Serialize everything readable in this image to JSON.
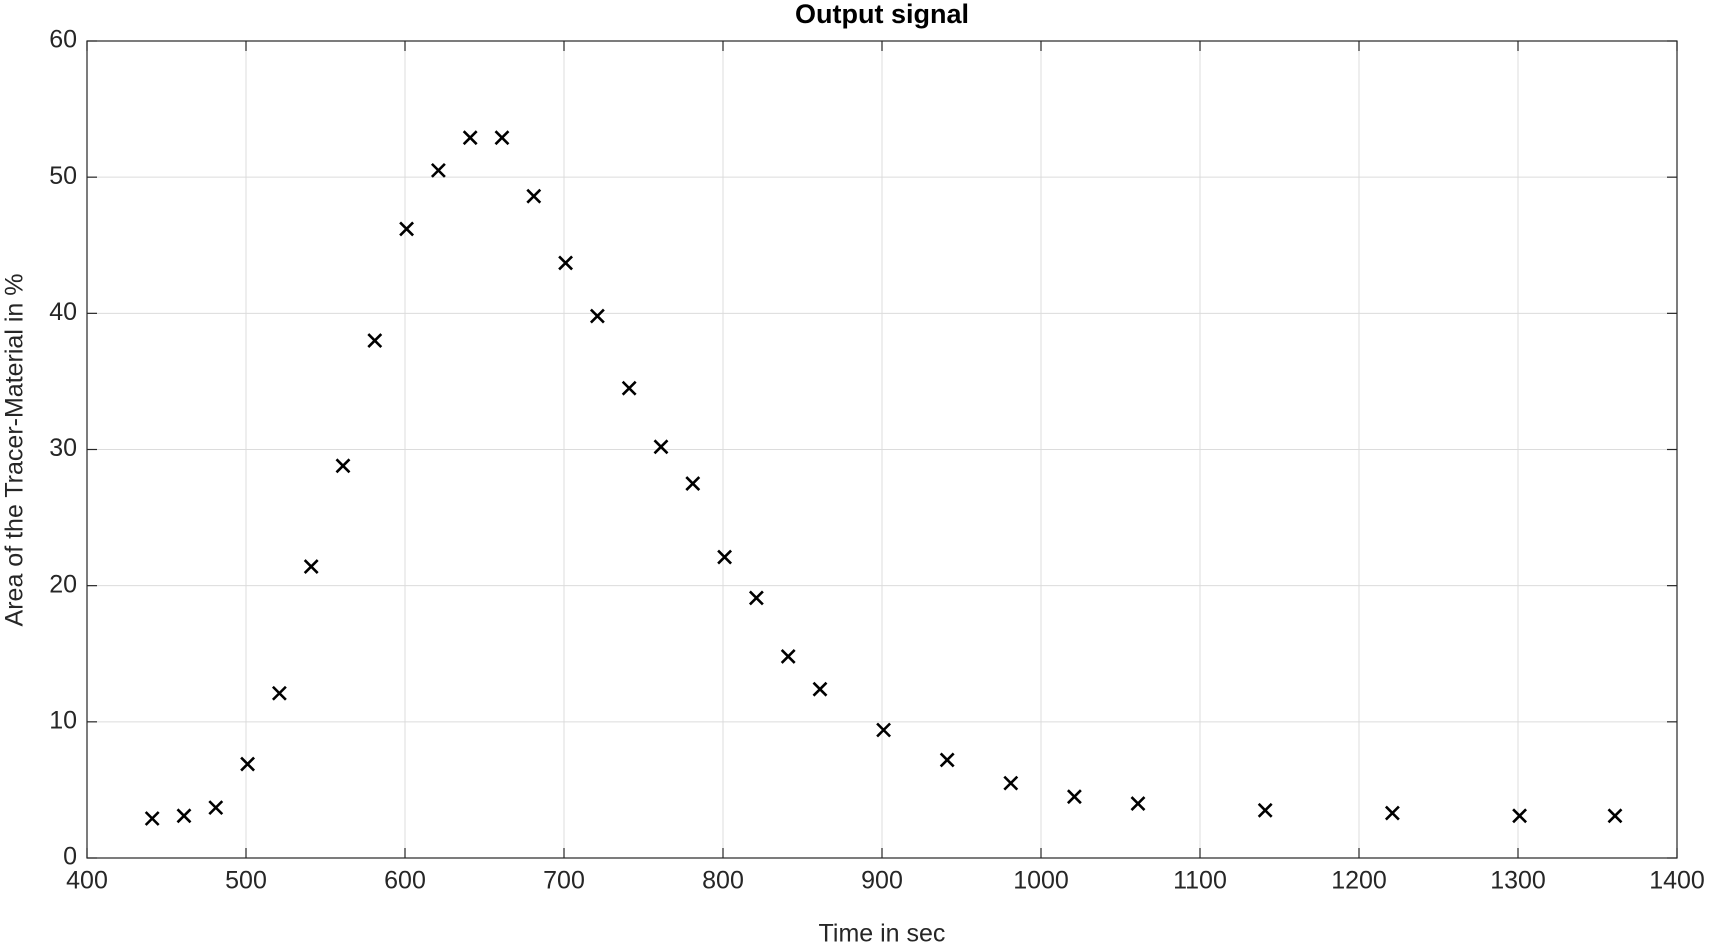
{
  "chart_data": {
    "type": "scatter",
    "title": "Output signal",
    "x_label": "Time in sec",
    "y_label": "Area of the Tracer-Material in %",
    "x": [
      441,
      461,
      481,
      501,
      521,
      541,
      561,
      581,
      601,
      621,
      641,
      661,
      681,
      701,
      721,
      741,
      761,
      781,
      801,
      821,
      841,
      861,
      901,
      941,
      981,
      1021,
      1061,
      1141,
      1221,
      1301,
      1361
    ],
    "values": [
      2.9,
      3.1,
      3.7,
      6.9,
      12.1,
      21.4,
      28.8,
      38.0,
      46.2,
      50.5,
      52.9,
      52.9,
      48.6,
      43.7,
      39.8,
      34.5,
      30.2,
      27.5,
      22.1,
      19.1,
      14.8,
      12.4,
      9.4,
      7.2,
      5.5,
      4.5,
      4.0,
      3.5,
      3.3,
      3.1,
      3.1
    ],
    "color": "#000000",
    "marker": "x",
    "xlim": [
      400,
      1400
    ],
    "xticks": [
      400,
      500,
      600,
      700,
      800,
      900,
      1000,
      1100,
      1200,
      1300,
      1400
    ],
    "ylim": [
      0,
      60
    ],
    "yticks": [
      0,
      10,
      20,
      30,
      40,
      50,
      60
    ],
    "grid": true
  }
}
